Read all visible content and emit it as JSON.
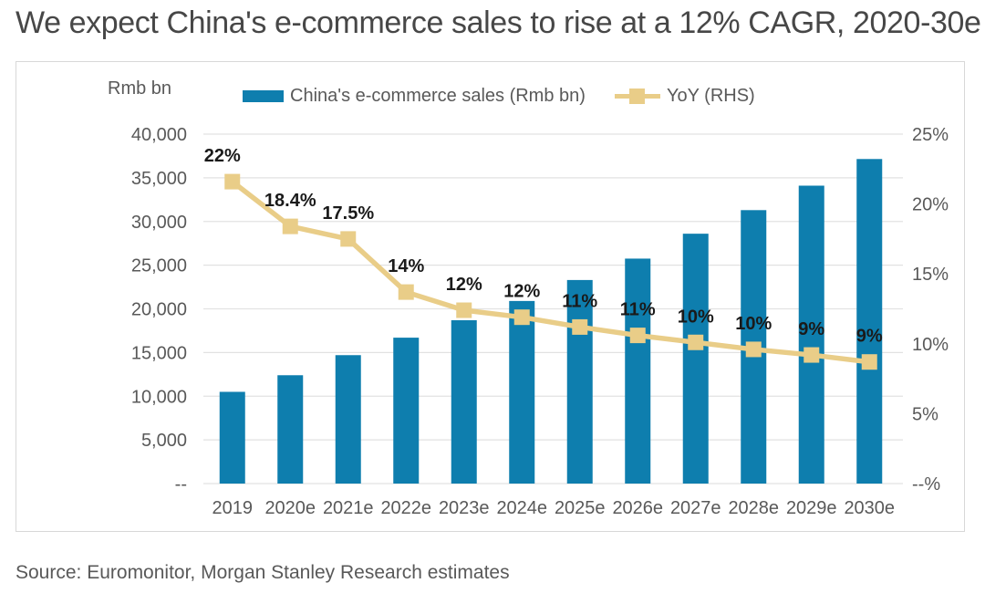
{
  "title": "We expect China's e-commerce sales to rise at a 12% CAGR, 2020-30e",
  "source": "Source: Euromonitor, Morgan Stanley Research estimates",
  "chart_data": {
    "type": "combo-bar-line",
    "title": "We expect China's e-commerce sales to rise at a 12% CAGR, 2020-30e",
    "categories": [
      "2019",
      "2020e",
      "2021e",
      "2022e",
      "2023e",
      "2024e",
      "2025e",
      "2026e",
      "2027e",
      "2028e",
      "2029e",
      "2030e"
    ],
    "series": [
      {
        "name": "China's e-commerce sales (Rmb bn)",
        "type": "bar",
        "axis": "left",
        "color": "#0e7eae",
        "values": [
          10500,
          12400,
          14700,
          16700,
          18700,
          20900,
          23300,
          25750,
          28600,
          31300,
          34100,
          37150
        ]
      },
      {
        "name": "YoY (RHS)",
        "type": "line",
        "axis": "right",
        "color": "#e9cd88",
        "labels": [
          "22%",
          "18.4%",
          "17.5%",
          "14%",
          "12%",
          "12%",
          "11%",
          "11%",
          "10%",
          "10%",
          "9%",
          "9%"
        ],
        "values_pct": [
          21.6,
          18.4,
          17.5,
          13.7,
          12.4,
          11.9,
          11.2,
          10.6,
          10.1,
          9.6,
          9.2,
          8.7
        ]
      }
    ],
    "left_axis": {
      "unit_label": "Rmb bn",
      "min": 0,
      "max": 40000,
      "tick_labels": [
        "40,000",
        "35,000",
        "30,000",
        "25,000",
        "20,000",
        "15,000",
        "10,000",
        "5,000",
        "--"
      ],
      "tick_values": [
        40000,
        35000,
        30000,
        25000,
        20000,
        15000,
        10000,
        5000,
        0
      ]
    },
    "right_axis": {
      "min": 0,
      "max": 25,
      "tick_labels": [
        "25%",
        "20%",
        "15%",
        "10%",
        "5%",
        "--%"
      ],
      "tick_values": [
        25,
        20,
        15,
        10,
        5,
        0
      ]
    },
    "grid": true,
    "legend_position": "top",
    "colors": {
      "gridline": "#e2e2e2",
      "axis_text": "#595959",
      "data_label": "#1a1a1a"
    }
  }
}
